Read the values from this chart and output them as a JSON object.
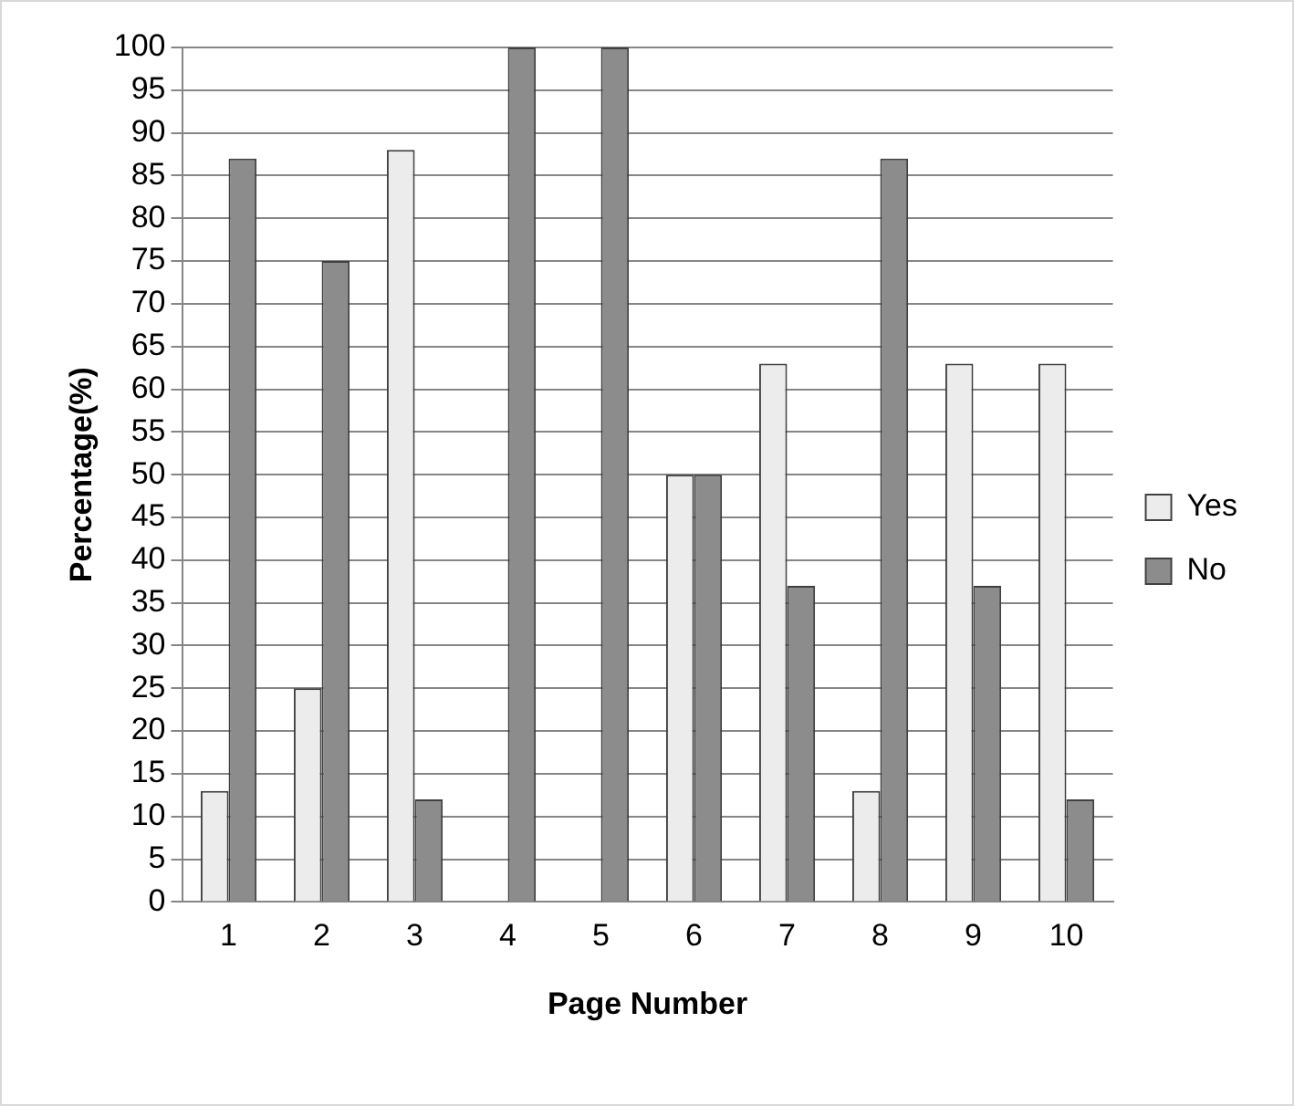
{
  "chart_data": {
    "type": "bar",
    "xlabel": "Page Number",
    "ylabel": "Percentage(%)",
    "categories": [
      "1",
      "2",
      "3",
      "4",
      "5",
      "6",
      "7",
      "8",
      "9",
      "10"
    ],
    "series": [
      {
        "name": "Yes",
        "color": "#ececec",
        "values": [
          13,
          25,
          88,
          0,
          0,
          50,
          63,
          13,
          63,
          63
        ]
      },
      {
        "name": "No",
        "color": "#8c8c8c",
        "values": [
          87,
          75,
          12,
          100,
          100,
          50,
          37,
          87,
          37,
          12
        ]
      }
    ],
    "ylim": [
      0,
      100
    ],
    "yticks": [
      0,
      5,
      10,
      15,
      20,
      25,
      30,
      35,
      40,
      45,
      50,
      55,
      60,
      65,
      70,
      75,
      80,
      85,
      90,
      95,
      100
    ],
    "grid": "y",
    "legend": "right"
  }
}
